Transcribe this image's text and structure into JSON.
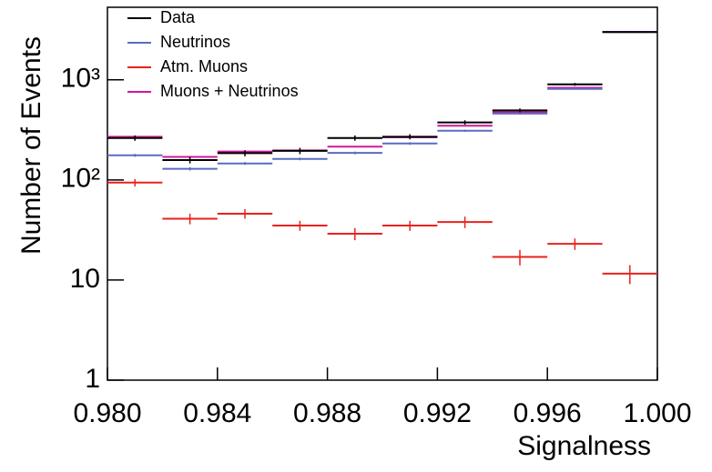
{
  "chart_data": {
    "type": "histogram",
    "x_label": "Signalness",
    "y_label": "Number of Events",
    "bins": [
      0.98,
      0.982,
      0.984,
      0.986,
      0.988,
      0.99,
      0.992,
      0.994,
      0.996,
      0.998,
      1.0
    ],
    "series": [
      {
        "name": "Data",
        "color": "#000000",
        "values": [
          262,
          158,
          185,
          195,
          262,
          270,
          375,
          495,
          900,
          3000
        ],
        "errors": [
          16,
          12,
          13,
          14,
          16,
          16,
          19,
          22,
          30,
          55
        ]
      },
      {
        "name": "Neutrinos",
        "color": "#5a6cc0",
        "values": [
          176,
          129,
          146,
          162,
          186,
          231,
          310,
          460,
          810,
          3000
        ],
        "errors": [
          6,
          5,
          5,
          5,
          6,
          7,
          8,
          10,
          14,
          25
        ]
      },
      {
        "name": "Atm. Muons",
        "color": "#e8221d",
        "values": [
          94,
          41,
          46,
          35,
          29,
          35,
          38,
          17,
          23,
          11.6
        ],
        "errors": [
          8,
          5,
          5,
          4,
          4,
          4,
          5,
          3,
          3,
          2.5
        ]
      },
      {
        "name": "Muons + Neutrinos",
        "color": "#d0189c",
        "values": [
          270,
          170,
          192,
          197,
          215,
          266,
          348,
          477,
          833,
          3012
        ]
      }
    ],
    "xlim": [
      0.98,
      1.0
    ],
    "xticks": [
      {
        "value": 0.98,
        "label": "0.980"
      },
      {
        "value": 0.984,
        "label": "0.984"
      },
      {
        "value": 0.988,
        "label": "0.988"
      },
      {
        "value": 0.992,
        "label": "0.992"
      },
      {
        "value": 0.996,
        "label": "0.996"
      },
      {
        "value": 1.0,
        "label": "1.000"
      }
    ],
    "ylim": [
      1,
      5300
    ],
    "yticks": [
      1,
      10,
      {
        "value": 100,
        "label": "10²"
      },
      {
        "value": 1000,
        "label": "10³"
      }
    ],
    "log_y": true,
    "legend": "top-left"
  }
}
